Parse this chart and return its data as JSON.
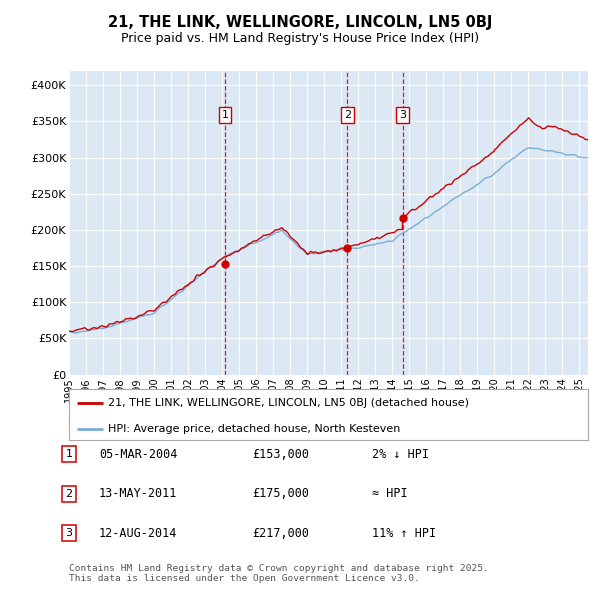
{
  "title": "21, THE LINK, WELLINGORE, LINCOLN, LN5 0BJ",
  "subtitle": "Price paid vs. HM Land Registry's House Price Index (HPI)",
  "background_color": "#dce9f5",
  "grid_color": "#ffffff",
  "hpi_color": "#7aadd4",
  "price_color": "#cc0000",
  "dashed_line_color": "#cc0000",
  "ylim": [
    0,
    420000
  ],
  "yticks": [
    0,
    50000,
    100000,
    150000,
    200000,
    250000,
    300000,
    350000,
    400000
  ],
  "ytick_labels": [
    "£0",
    "£50K",
    "£100K",
    "£150K",
    "£200K",
    "£250K",
    "£300K",
    "£350K",
    "£400K"
  ],
  "sale_dates": [
    2004.17,
    2011.36,
    2014.61
  ],
  "sale_prices": [
    153000,
    175000,
    217000
  ],
  "sale_labels": [
    "1",
    "2",
    "3"
  ],
  "legend_label_price": "21, THE LINK, WELLINGORE, LINCOLN, LN5 0BJ (detached house)",
  "legend_label_hpi": "HPI: Average price, detached house, North Kesteven",
  "table_rows": [
    {
      "num": "1",
      "date": "05-MAR-2004",
      "price": "£153,000",
      "change": "2% ↓ HPI"
    },
    {
      "num": "2",
      "date": "13-MAY-2011",
      "price": "£175,000",
      "change": "≈ HPI"
    },
    {
      "num": "3",
      "date": "12-AUG-2014",
      "price": "£217,000",
      "change": "11% ↑ HPI"
    }
  ],
  "footer": "Contains HM Land Registry data © Crown copyright and database right 2025.\nThis data is licensed under the Open Government Licence v3.0.",
  "xstart": 1995.0,
  "xend": 2025.5
}
